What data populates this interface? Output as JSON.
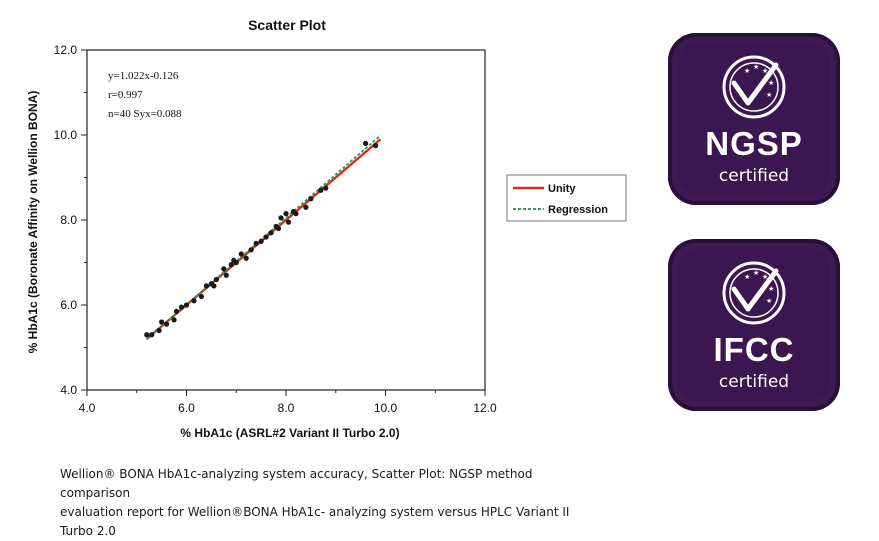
{
  "chart_data": {
    "type": "scatter",
    "title": "Scatter Plot",
    "xlabel": "% HbA1c (ASRL#2 Variant II Turbo 2.0)",
    "ylabel": "% HbA1c (Boronate Affinity on Wellion BONA)",
    "xlim": [
      4.0,
      12.0
    ],
    "ylim": [
      4.0,
      12.0
    ],
    "x_ticks": [
      "4.0",
      "6.0",
      "8.0",
      "10.0",
      "12.0"
    ],
    "y_ticks": [
      "4.0",
      "6.0",
      "8.0",
      "10.0",
      "12.0"
    ],
    "grid": false,
    "legend_position": "right",
    "annotations": [
      "y=1.022x-0.126",
      "r=0.997",
      "n=40 Syx=0.088"
    ],
    "series": [
      {
        "name": "Unity",
        "kind": "line",
        "color": "#d62b1e",
        "x": [
          5.2,
          9.9
        ],
        "y": [
          5.2,
          9.9
        ]
      },
      {
        "name": "Regression",
        "kind": "dashed-line",
        "color": "#2f9e5a",
        "x": [
          5.2,
          9.9
        ],
        "y": [
          5.19,
          9.99
        ]
      },
      {
        "name": "",
        "kind": "points",
        "color": "#1a1a1a",
        "x": [
          5.2,
          5.3,
          5.45,
          5.5,
          5.6,
          5.75,
          5.8,
          5.9,
          6.0,
          6.15,
          6.3,
          6.4,
          6.5,
          6.55,
          6.6,
          6.75,
          6.8,
          6.9,
          6.95,
          7.0,
          7.1,
          7.2,
          7.3,
          7.4,
          7.5,
          7.6,
          7.7,
          7.8,
          7.85,
          7.9,
          8.0,
          8.05,
          8.15,
          8.2,
          8.4,
          8.5,
          8.7,
          8.8,
          9.6,
          9.8
        ],
        "y": [
          5.3,
          5.3,
          5.4,
          5.6,
          5.55,
          5.65,
          5.85,
          5.95,
          6.0,
          6.1,
          6.2,
          6.45,
          6.5,
          6.45,
          6.6,
          6.85,
          6.7,
          6.95,
          7.05,
          7.0,
          7.2,
          7.1,
          7.3,
          7.45,
          7.5,
          7.6,
          7.7,
          7.85,
          7.8,
          8.05,
          8.15,
          7.95,
          8.2,
          8.15,
          8.3,
          8.5,
          8.7,
          8.75,
          9.8,
          9.75
        ]
      }
    ]
  },
  "caption": {
    "line1": "Wellion® BONA HbA1c-analyzing system accuracy, Scatter Plot: NGSP method comparison",
    "line2": "evaluation report for Wellion®BONA HbA1c- analyzing system versus HPLC Variant II Turbo 2.0"
  },
  "badges": [
    {
      "name": "NGSP",
      "certified": "certified",
      "icon": "checkmark-stars-icon",
      "color": "#3e1a52"
    },
    {
      "name": "IFCC",
      "certified": "certified",
      "icon": "checkmark-stars-icon",
      "color": "#3e1a52"
    }
  ]
}
